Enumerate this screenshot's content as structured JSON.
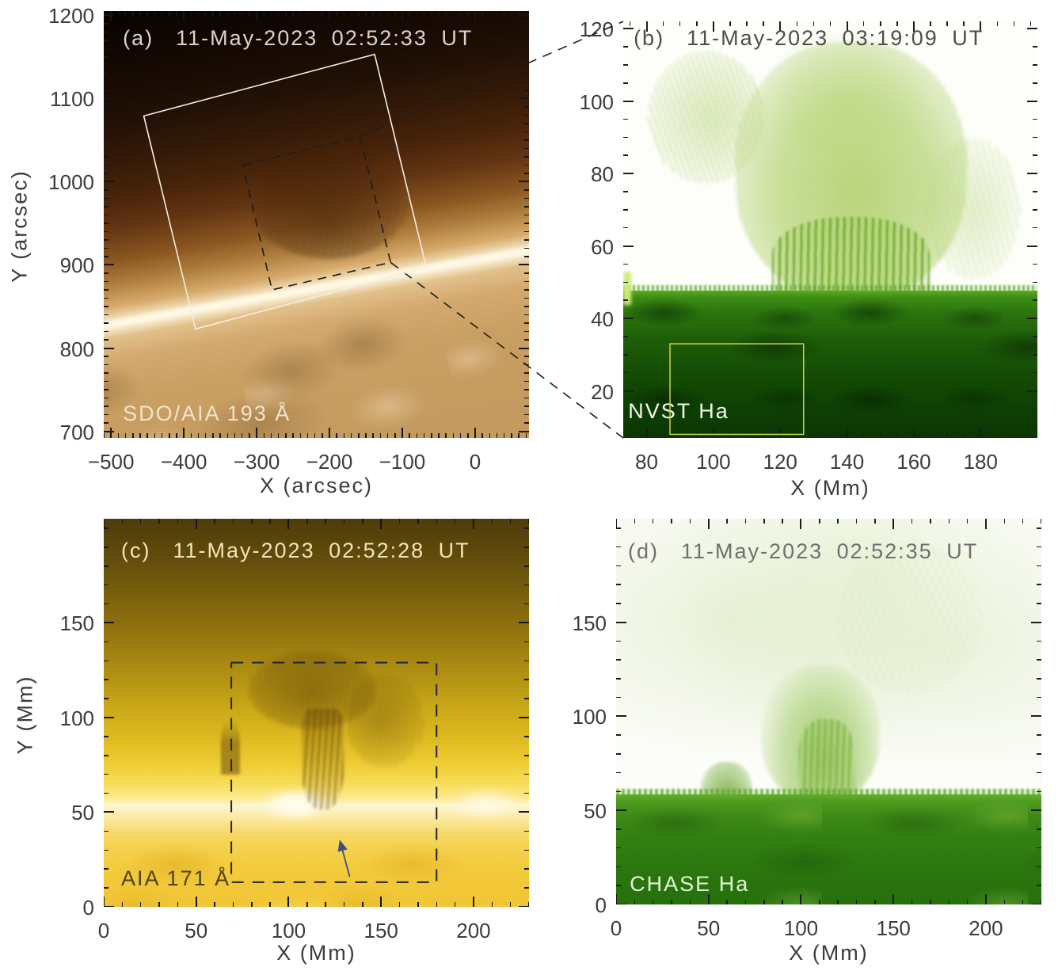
{
  "chart_data": [
    {
      "type": "heatmap",
      "panel": "a",
      "label": "(a)",
      "title": "11-May-2023 02:52:33 UT",
      "instrument_label": "SDO/AIA 193 Å",
      "xlabel": "X (arcsec)",
      "ylabel": "Y (arcsec)",
      "xlim": [
        -510,
        74
      ],
      "ylim": [
        692,
        1205
      ],
      "xticks": [
        -500,
        -400,
        -300,
        -200,
        -100,
        0
      ],
      "yticks": [
        700,
        800,
        900,
        1000,
        1100,
        1200
      ],
      "x_minor_step": 10,
      "y_minor_step": 10,
      "annotations": {
        "solid_box": {
          "style": "solid",
          "color": "#f2eee4",
          "corners": [
            [
              -455,
              1079
            ],
            [
              -138,
              1153
            ],
            [
              -67,
              897
            ],
            [
              -384,
              823
            ]
          ]
        },
        "dashed_box": {
          "style": "dashed",
          "color": "#1c1c1c",
          "corners": [
            [
              -319,
              1020
            ],
            [
              -158,
              1054
            ],
            [
              -116,
              903
            ],
            [
              -279,
              870
            ]
          ]
        }
      }
    },
    {
      "type": "heatmap",
      "panel": "b",
      "label": "(b)",
      "title": "11-May-2023 03:19:09 UT",
      "instrument_label": "NVST Ha",
      "xlabel": "X (Mm)",
      "ylabel": "",
      "xlim": [
        73,
        197
      ],
      "ylim": [
        7,
        122
      ],
      "xticks": [
        80,
        100,
        120,
        140,
        160,
        180
      ],
      "yticks": [
        20,
        40,
        60,
        80,
        100,
        120
      ],
      "x_minor_step": 5,
      "y_minor_step": 5,
      "annotations": {
        "sub_region_box": {
          "style": "solid",
          "color": "#c9d44f",
          "x": [
            87,
            127
          ],
          "y": [
            8,
            33
          ]
        }
      }
    },
    {
      "type": "heatmap",
      "panel": "c",
      "label": "(c)",
      "title": "11-May-2023 02:52:28 UT",
      "instrument_label": "AIA 171 Å",
      "xlabel": "X (Mm)",
      "ylabel": "Y (Mm)",
      "xlim": [
        0,
        230
      ],
      "ylim": [
        0,
        205
      ],
      "xticks": [
        0,
        50,
        100,
        150,
        200
      ],
      "yticks": [
        0,
        50,
        100,
        150
      ],
      "x_minor_step": 10,
      "y_minor_step": 10,
      "annotations": {
        "dashed_box": {
          "style": "dashed",
          "color": "#242424",
          "x": [
            69,
            180
          ],
          "y": [
            13,
            129
          ]
        },
        "arrow": {
          "color": "#3f4f85",
          "tail": [
            133,
            16
          ],
          "tip": [
            128,
            34
          ]
        }
      }
    },
    {
      "type": "heatmap",
      "panel": "d",
      "label": "(d)",
      "title": "11-May-2023 02:52:35 UT",
      "instrument_label": "CHASE Ha",
      "xlabel": "X (Mm)",
      "ylabel": "",
      "xlim": [
        0,
        230
      ],
      "ylim": [
        0,
        205
      ],
      "xticks": [
        0,
        50,
        100,
        150,
        200
      ],
      "yticks": [
        0,
        50,
        100,
        150
      ],
      "x_minor_step": 10,
      "y_minor_step": 10
    }
  ],
  "connectors": [
    {
      "from_panel": "a",
      "from_box": "dashed_box",
      "from_corner": 1,
      "to_panel": "b",
      "to_corner": "top-left",
      "color": "#1c1c1c"
    },
    {
      "from_panel": "a",
      "from_box": "dashed_box",
      "from_corner": 2,
      "to_panel": "b",
      "to_corner": "bottom-left",
      "color": "#1c1c1c"
    }
  ]
}
